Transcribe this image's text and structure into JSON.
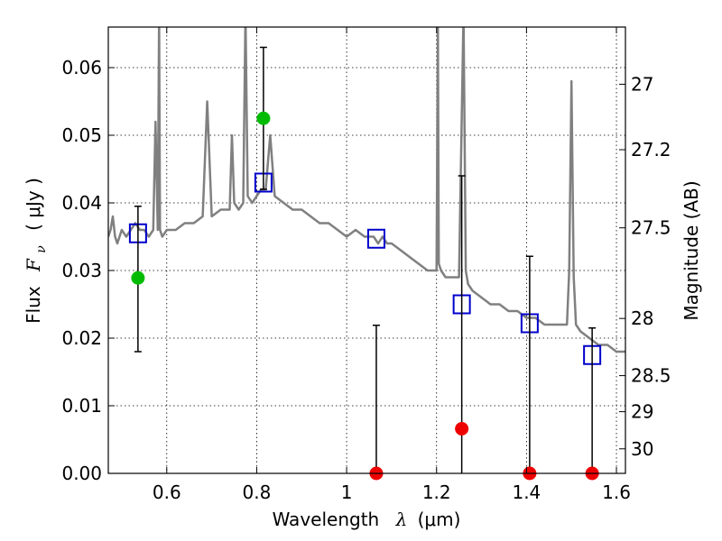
{
  "chart_data": {
    "type": "scatter",
    "xlabel": "Wavelength",
    "xlabel_symbol": "λ",
    "xlabel_unit": "(μm)",
    "ylabel_prefix": "Flux",
    "ylabel_symbol": "F",
    "ylabel_subscript": "ν",
    "ylabel_unit": "( μJy )",
    "y2label": "Magnitude (AB)",
    "xlim": [
      0.47,
      1.62
    ],
    "ylim": [
      0.0,
      0.066
    ],
    "grid": true,
    "x_ticks": [
      {
        "value": 0.6,
        "label": "0.6"
      },
      {
        "value": 0.8,
        "label": "0.8"
      },
      {
        "value": 1.0,
        "label": "1"
      },
      {
        "value": 1.2,
        "label": "1.2"
      },
      {
        "value": 1.4,
        "label": "1.4"
      },
      {
        "value": 1.6,
        "label": "1.6"
      }
    ],
    "y_ticks": [
      {
        "value": 0.0,
        "label": "0.00"
      },
      {
        "value": 0.01,
        "label": "0.01"
      },
      {
        "value": 0.02,
        "label": "0.02"
      },
      {
        "value": 0.03,
        "label": "0.03"
      },
      {
        "value": 0.04,
        "label": "0.04"
      },
      {
        "value": 0.05,
        "label": "0.05"
      },
      {
        "value": 0.06,
        "label": "0.06"
      }
    ],
    "y2_ticks": [
      {
        "value": 27,
        "label": "27"
      },
      {
        "value": 27.2,
        "label": "27.2"
      },
      {
        "value": 27.5,
        "label": "27.5"
      },
      {
        "value": 28,
        "label": "28"
      },
      {
        "value": 28.5,
        "label": "28.5"
      },
      {
        "value": 29,
        "label": "29"
      },
      {
        "value": 30,
        "label": "30"
      }
    ],
    "series": [
      {
        "kind": "line",
        "color": "#808080",
        "x": [
          0.47,
          0.475,
          0.48,
          0.485,
          0.49,
          0.5,
          0.51,
          0.52,
          0.53,
          0.54,
          0.55,
          0.56,
          0.57,
          0.575,
          0.58,
          0.583,
          0.585,
          0.59,
          0.6,
          0.62,
          0.64,
          0.66,
          0.68,
          0.69,
          0.7,
          0.72,
          0.74,
          0.745,
          0.75,
          0.76,
          0.77,
          0.775,
          0.78,
          0.79,
          0.8,
          0.81,
          0.82,
          0.83,
          0.84,
          0.86,
          0.88,
          0.9,
          0.92,
          0.94,
          0.96,
          0.98,
          1.0,
          1.02,
          1.04,
          1.06,
          1.07,
          1.08,
          1.09,
          1.1,
          1.12,
          1.14,
          1.16,
          1.18,
          1.2,
          1.203,
          1.205,
          1.21,
          1.22,
          1.24,
          1.25,
          1.26,
          1.265,
          1.27,
          1.28,
          1.3,
          1.32,
          1.34,
          1.36,
          1.38,
          1.4,
          1.42,
          1.44,
          1.46,
          1.48,
          1.49,
          1.495,
          1.5,
          1.505,
          1.51,
          1.52,
          1.54,
          1.56,
          1.58,
          1.6,
          1.62
        ],
        "y": [
          0.035,
          0.036,
          0.038,
          0.035,
          0.034,
          0.036,
          0.035,
          0.036,
          0.037,
          0.036,
          0.036,
          0.035,
          0.036,
          0.052,
          0.036,
          0.068,
          0.036,
          0.035,
          0.036,
          0.036,
          0.037,
          0.037,
          0.038,
          0.055,
          0.038,
          0.039,
          0.039,
          0.05,
          0.04,
          0.039,
          0.04,
          0.068,
          0.041,
          0.04,
          0.041,
          0.042,
          0.042,
          0.05,
          0.041,
          0.04,
          0.039,
          0.039,
          0.038,
          0.037,
          0.037,
          0.036,
          0.035,
          0.036,
          0.035,
          0.035,
          0.034,
          0.035,
          0.034,
          0.034,
          0.033,
          0.032,
          0.031,
          0.03,
          0.03,
          0.066,
          0.031,
          0.03,
          0.029,
          0.029,
          0.029,
          0.068,
          0.03,
          0.028,
          0.027,
          0.026,
          0.025,
          0.025,
          0.024,
          0.024,
          0.023,
          0.023,
          0.022,
          0.022,
          0.022,
          0.022,
          0.03,
          0.058,
          0.029,
          0.022,
          0.021,
          0.02,
          0.019,
          0.019,
          0.018,
          0.018
        ]
      },
      {
        "kind": "square",
        "color": "#0000cc",
        "x": [
          0.536,
          0.815,
          1.066,
          1.256,
          1.407,
          1.546
        ],
        "y": [
          0.0355,
          0.043,
          0.0347,
          0.025,
          0.0222,
          0.0175
        ]
      },
      {
        "kind": "errorbar",
        "color": "#000000",
        "points": [
          {
            "x": 0.536,
            "y": 0.0289,
            "lo": 0.018,
            "hi": 0.0395
          },
          {
            "x": 0.815,
            "y": 0.0525,
            "lo": 0.042,
            "hi": 0.063
          },
          {
            "x": 1.066,
            "y": 0.0,
            "lo": 0.0,
            "hi": 0.0219
          },
          {
            "x": 1.256,
            "y": 0.0066,
            "lo": 0.0,
            "hi": 0.044
          },
          {
            "x": 1.407,
            "y": 0.0,
            "lo": 0.0,
            "hi": 0.0321
          },
          {
            "x": 1.546,
            "y": 0.0,
            "lo": 0.0,
            "hi": 0.0215
          }
        ]
      },
      {
        "kind": "dot",
        "points": [
          {
            "x": 0.536,
            "y": 0.0289,
            "color": "#00bb00"
          },
          {
            "x": 0.815,
            "y": 0.0525,
            "color": "#00bb00"
          },
          {
            "x": 1.066,
            "y": 0.0,
            "color": "#ee0000"
          },
          {
            "x": 1.256,
            "y": 0.0066,
            "color": "#ee0000"
          },
          {
            "x": 1.407,
            "y": 0.0,
            "color": "#ee0000"
          },
          {
            "x": 1.546,
            "y": 0.0,
            "color": "#ee0000"
          }
        ]
      }
    ]
  }
}
